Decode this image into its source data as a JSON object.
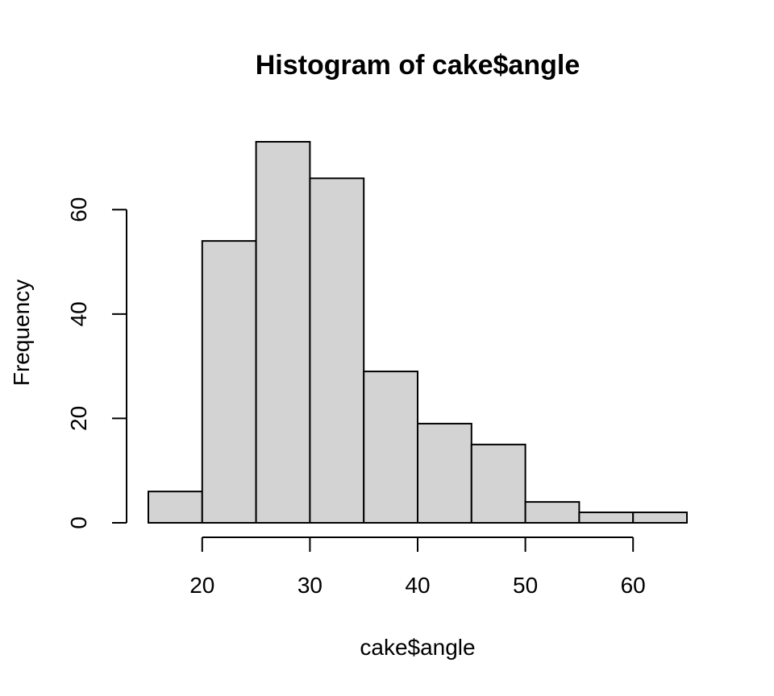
{
  "chart_data": {
    "type": "bar",
    "title": "Histogram of cake$angle",
    "xlabel": "cake$angle",
    "ylabel": "Frequency",
    "bins": [
      {
        "from": 15,
        "to": 20,
        "count": 6
      },
      {
        "from": 20,
        "to": 25,
        "count": 54
      },
      {
        "from": 25,
        "to": 30,
        "count": 73
      },
      {
        "from": 30,
        "to": 35,
        "count": 66
      },
      {
        "from": 35,
        "to": 40,
        "count": 29
      },
      {
        "from": 40,
        "to": 45,
        "count": 19
      },
      {
        "from": 45,
        "to": 50,
        "count": 15
      },
      {
        "from": 50,
        "to": 55,
        "count": 4
      },
      {
        "from": 55,
        "to": 60,
        "count": 2
      },
      {
        "from": 60,
        "to": 65,
        "count": 2
      }
    ],
    "x_ticks": [
      20,
      30,
      40,
      50,
      60
    ],
    "x_tick_labels": [
      "20",
      "30",
      "40",
      "50",
      "60"
    ],
    "y_ticks": [
      0,
      20,
      40,
      60
    ],
    "y_tick_labels": [
      "0",
      "20",
      "40",
      "60"
    ],
    "xlim": [
      15,
      65
    ],
    "ylim": [
      0,
      73
    ],
    "grid": false,
    "colors": {
      "bar_fill": "#d3d3d3",
      "bar_stroke": "#000000"
    }
  }
}
